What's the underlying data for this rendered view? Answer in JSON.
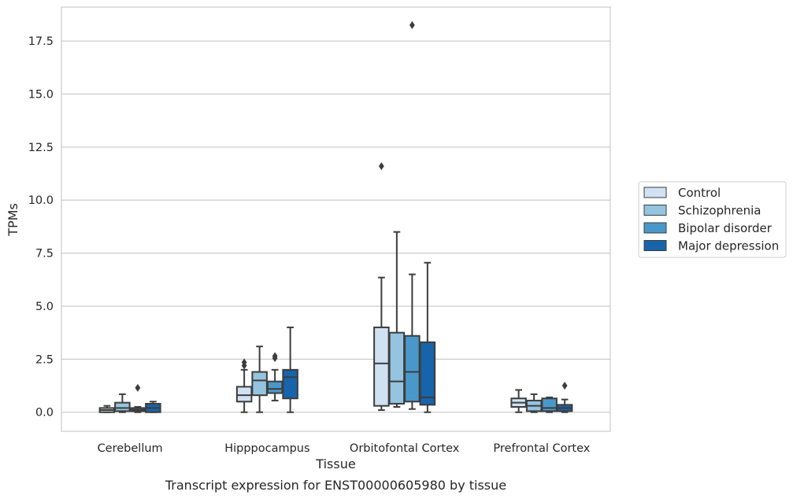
{
  "chart_data": {
    "type": "box",
    "title": "",
    "caption": "Transcript expression for ENST00000605980 by tissue",
    "xlabel": "Tissue",
    "ylabel": "TPMs",
    "ylim": [
      -0.9,
      19.1
    ],
    "yticks": [
      "0.0",
      "2.5",
      "5.0",
      "7.5",
      "10.0",
      "12.5",
      "15.0",
      "17.5"
    ],
    "grid": "horizontal",
    "legend_position": "right",
    "categories": [
      "Cerebellum",
      "Hipppocampus",
      "Orbitofontal Cortex",
      "Prefrontal Cortex"
    ],
    "series": [
      {
        "name": "Control",
        "color": "#d0e1f2",
        "boxes": [
          {
            "min": 0.0,
            "q1": 0.0,
            "median": 0.1,
            "q3": 0.2,
            "max": 0.3,
            "outliers": []
          },
          {
            "min": 0.0,
            "q1": 0.5,
            "median": 0.8,
            "q3": 1.2,
            "max": 2.0,
            "outliers": [
              2.2,
              2.35
            ]
          },
          {
            "min": 0.1,
            "q1": 0.3,
            "median": 2.3,
            "q3": 4.0,
            "max": 6.35,
            "outliers": [
              11.6
            ]
          },
          {
            "min": 0.0,
            "q1": 0.25,
            "median": 0.45,
            "q3": 0.65,
            "max": 1.05,
            "outliers": []
          }
        ]
      },
      {
        "name": "Schizophrenia",
        "color": "#94c4df",
        "boxes": [
          {
            "min": 0.0,
            "q1": 0.05,
            "median": 0.2,
            "q3": 0.45,
            "max": 0.85,
            "outliers": []
          },
          {
            "min": 0.0,
            "q1": 0.8,
            "median": 1.5,
            "q3": 1.9,
            "max": 3.1,
            "outliers": []
          },
          {
            "min": 0.25,
            "q1": 0.4,
            "median": 1.45,
            "q3": 3.75,
            "max": 8.5,
            "outliers": []
          },
          {
            "min": 0.0,
            "q1": 0.05,
            "median": 0.3,
            "q3": 0.55,
            "max": 0.85,
            "outliers": []
          }
        ]
      },
      {
        "name": "Bipolar disorder",
        "color": "#4a98c9",
        "boxes": [
          {
            "min": 0.0,
            "q1": 0.05,
            "median": 0.12,
            "q3": 0.2,
            "max": 0.25,
            "outliers": [
              1.15
            ]
          },
          {
            "min": 0.55,
            "q1": 0.9,
            "median": 1.1,
            "q3": 1.45,
            "max": 2.0,
            "outliers": [
              2.55,
              2.65
            ]
          },
          {
            "min": 0.15,
            "q1": 0.5,
            "median": 1.9,
            "q3": 3.6,
            "max": 6.5,
            "outliers": [
              18.25
            ]
          },
          {
            "min": 0.0,
            "q1": 0.05,
            "median": 0.2,
            "q3": 0.65,
            "max": 0.7,
            "outliers": []
          }
        ]
      },
      {
        "name": "Major depression",
        "color": "#1764ab",
        "boxes": [
          {
            "min": 0.0,
            "q1": 0.0,
            "median": 0.2,
            "q3": 0.4,
            "max": 0.5,
            "outliers": []
          },
          {
            "min": 0.0,
            "q1": 0.65,
            "median": 1.65,
            "q3": 2.0,
            "max": 4.0,
            "outliers": []
          },
          {
            "min": 0.0,
            "q1": 0.35,
            "median": 0.7,
            "q3": 3.3,
            "max": 7.05,
            "outliers": []
          },
          {
            "min": 0.0,
            "q1": 0.05,
            "median": 0.2,
            "q3": 0.35,
            "max": 0.6,
            "outliers": [
              1.25
            ]
          }
        ]
      }
    ]
  }
}
